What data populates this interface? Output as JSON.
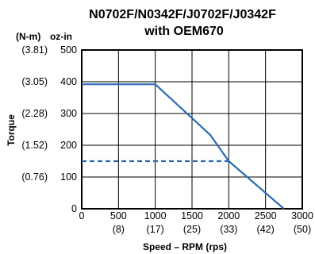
{
  "chart_data": {
    "type": "line",
    "title": [
      "N0702F/N0342F/J0702F/J0342F",
      "with OEM670"
    ],
    "xlabel": "Speed – RPM (rps)",
    "ylabel": "Torque",
    "y_units": {
      "metric": "(N-m)",
      "imperial": "oz-in"
    },
    "xlim": [
      0,
      3000
    ],
    "ylim": [
      0,
      500
    ],
    "grid": true,
    "x_ticks": [
      {
        "value": 0,
        "label": "0",
        "sub": ""
      },
      {
        "value": 500,
        "label": "500",
        "sub": "(8)"
      },
      {
        "value": 1000,
        "label": "1000",
        "sub": "(17)"
      },
      {
        "value": 1500,
        "label": "1500",
        "sub": "(25)"
      },
      {
        "value": 2000,
        "label": "2000",
        "sub": "(33)"
      },
      {
        "value": 2500,
        "label": "2500",
        "sub": "(42)"
      },
      {
        "value": 3000,
        "label": "3000",
        "sub": "(50)"
      }
    ],
    "y_ticks": [
      {
        "value": 0,
        "label": "0",
        "metric": ""
      },
      {
        "value": 100,
        "label": "100",
        "metric": "(0.76)"
      },
      {
        "value": 200,
        "label": "200",
        "metric": "(1.52)"
      },
      {
        "value": 300,
        "label": "300",
        "metric": "(2.28)"
      },
      {
        "value": 400,
        "label": "400",
        "metric": "(3.05)"
      },
      {
        "value": 500,
        "label": "500",
        "metric": "(3.81)"
      }
    ],
    "series": [
      {
        "style": "solid",
        "color": "#2a6bb4",
        "x": [
          0,
          1000,
          1750,
          2000,
          2750
        ],
        "y": [
          392,
          392,
          232,
          150,
          0
        ]
      },
      {
        "style": "dashed",
        "color": "#2a6bb4",
        "x": [
          0,
          2000
        ],
        "y": [
          150,
          150
        ]
      }
    ]
  }
}
